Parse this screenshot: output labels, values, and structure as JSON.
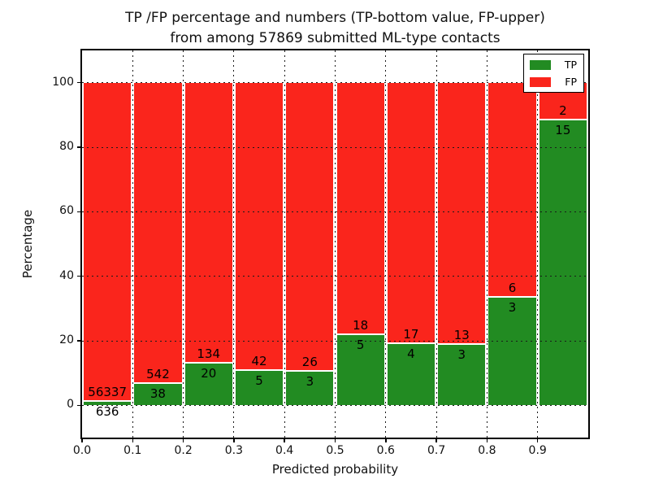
{
  "figure": {
    "title_line1": "TP /FP percentage and numbers (TP-bottom value, FP-upper)",
    "title_line2": "from among 57869 submitted ML-type contacts"
  },
  "chart_data": {
    "type": "bar",
    "stacked": true,
    "title": "TP /FP percentage and numbers (TP-bottom value, FP-upper)\nfrom among 57869 submitted ML-type contacts",
    "xlabel": "Predicted probability",
    "ylabel": "Percentage",
    "total_contacts": 57869,
    "xlim": [
      0.0,
      1.0
    ],
    "ylim": [
      -10,
      110
    ],
    "bin_width": 0.1,
    "grid": true,
    "x_tick_labels": [
      "0.0",
      "0.1",
      "0.2",
      "0.3",
      "0.4",
      "0.5",
      "0.6",
      "0.7",
      "0.8",
      "0.9"
    ],
    "y_ticks": [
      0,
      20,
      40,
      60,
      80,
      100
    ],
    "colors": {
      "tp": "#228b22",
      "fp": "#fa251c"
    },
    "legend": {
      "position": "upper right",
      "entries": [
        {
          "label": "TP",
          "color": "#228b22"
        },
        {
          "label": "FP",
          "color": "#fa251c"
        }
      ]
    },
    "series": [
      {
        "name": "TP",
        "values_pct": [
          1.12,
          6.55,
          12.99,
          10.64,
          10.34,
          21.74,
          19.05,
          18.75,
          33.33,
          88.24
        ]
      },
      {
        "name": "FP",
        "values_pct": [
          98.88,
          93.45,
          87.01,
          89.36,
          89.66,
          78.26,
          80.95,
          81.25,
          66.67,
          11.76
        ]
      }
    ],
    "bins": [
      {
        "x_start": 0.0,
        "x_end": 0.1,
        "tp_count": 636,
        "fp_count": 56337,
        "tp_pct": 1.12
      },
      {
        "x_start": 0.1,
        "x_end": 0.2,
        "tp_count": 38,
        "fp_count": 542,
        "tp_pct": 6.55
      },
      {
        "x_start": 0.2,
        "x_end": 0.3,
        "tp_count": 20,
        "fp_count": 134,
        "tp_pct": 12.99
      },
      {
        "x_start": 0.3,
        "x_end": 0.4,
        "tp_count": 5,
        "fp_count": 42,
        "tp_pct": 10.64
      },
      {
        "x_start": 0.4,
        "x_end": 0.5,
        "tp_count": 3,
        "fp_count": 26,
        "tp_pct": 10.34
      },
      {
        "x_start": 0.5,
        "x_end": 0.6,
        "tp_count": 5,
        "fp_count": 18,
        "tp_pct": 21.74
      },
      {
        "x_start": 0.6,
        "x_end": 0.7,
        "tp_count": 4,
        "fp_count": 17,
        "tp_pct": 19.05
      },
      {
        "x_start": 0.7,
        "x_end": 0.8,
        "tp_count": 3,
        "fp_count": 13,
        "tp_pct": 18.75
      },
      {
        "x_start": 0.8,
        "x_end": 0.9,
        "tp_count": 3,
        "fp_count": 6,
        "tp_pct": 33.33
      },
      {
        "x_start": 0.9,
        "x_end": 1.0,
        "tp_count": 15,
        "fp_count": 2,
        "tp_pct": 88.24
      }
    ]
  }
}
